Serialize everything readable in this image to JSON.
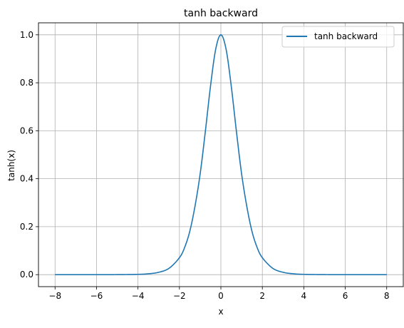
{
  "chart_data": {
    "type": "line",
    "title": "tanh backward",
    "xlabel": "x",
    "ylabel": "tanh(x)",
    "xlim": [
      -8.8,
      8.8
    ],
    "ylim": [
      -0.05,
      1.05
    ],
    "xticks": [
      -8,
      -6,
      -4,
      -2,
      0,
      2,
      4,
      6,
      8
    ],
    "xtick_labels": [
      "−8",
      "−6",
      "−4",
      "−2",
      "0",
      "2",
      "4",
      "6",
      "8"
    ],
    "yticks": [
      0.0,
      0.2,
      0.4,
      0.6,
      0.8,
      1.0
    ],
    "ytick_labels": [
      "0.0",
      "0.2",
      "0.4",
      "0.6",
      "0.8",
      "1.0"
    ],
    "grid": true,
    "legend_position": "top-right",
    "series": [
      {
        "name": "tanh backward",
        "color": "#1f77b4",
        "x": [
          -8,
          -7,
          -6,
          -5,
          -4,
          -3.5,
          -3,
          -2.5,
          -2,
          -1.75,
          -1.5,
          -1.25,
          -1,
          -0.75,
          -0.5,
          -0.25,
          0,
          0.25,
          0.5,
          0.75,
          1,
          1.25,
          1.5,
          1.75,
          2,
          2.5,
          3,
          3.5,
          4,
          5,
          6,
          7,
          8
        ],
        "y": [
          0.0,
          0.0,
          0.0,
          0.0002,
          0.0013,
          0.0036,
          0.0099,
          0.0266,
          0.0707,
          0.1131,
          0.1807,
          0.2849,
          0.42,
          0.5966,
          0.7864,
          0.9401,
          1.0,
          0.9401,
          0.7864,
          0.5966,
          0.42,
          0.2849,
          0.1807,
          0.1131,
          0.0707,
          0.0266,
          0.0099,
          0.0036,
          0.0013,
          0.0002,
          0.0,
          0.0,
          0.0
        ]
      }
    ]
  }
}
